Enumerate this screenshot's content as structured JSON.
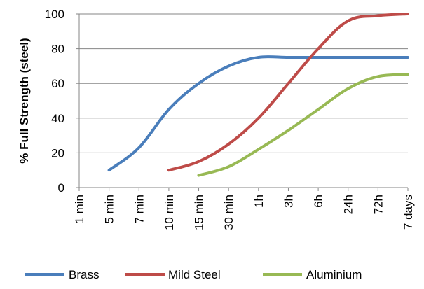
{
  "chart_data": {
    "type": "line",
    "title": "",
    "xlabel": "",
    "ylabel": "% Full Strength (steel)",
    "ylim": [
      0,
      100
    ],
    "yticks": [
      0,
      20,
      40,
      60,
      80,
      100
    ],
    "categories": [
      "1 min",
      "5 min",
      "7 min",
      "10 min",
      "15 min",
      "30 min",
      "1h",
      "3h",
      "6h",
      "24h",
      "72h",
      "7 days"
    ],
    "grid": "horizontal",
    "legend": "bottom",
    "series": [
      {
        "name": "Brass",
        "color": "#4a7ebb",
        "points": [
          [
            1,
            10
          ],
          [
            2,
            23
          ],
          [
            3,
            45
          ],
          [
            4,
            60
          ],
          [
            5,
            70
          ],
          [
            6,
            75
          ],
          [
            7,
            75
          ],
          [
            8,
            75
          ],
          [
            9,
            75
          ],
          [
            10,
            75
          ],
          [
            11,
            75
          ]
        ]
      },
      {
        "name": "Mild Steel",
        "color": "#be4b48",
        "points": [
          [
            3,
            10
          ],
          [
            4,
            15
          ],
          [
            5,
            25
          ],
          [
            6,
            40
          ],
          [
            7,
            60
          ],
          [
            8,
            80
          ],
          [
            9,
            96
          ],
          [
            10,
            99
          ],
          [
            11,
            100
          ]
        ]
      },
      {
        "name": "Aluminium",
        "color": "#98b954",
        "points": [
          [
            4,
            7
          ],
          [
            5,
            12
          ],
          [
            6,
            22
          ],
          [
            7,
            33
          ],
          [
            8,
            45
          ],
          [
            9,
            57
          ],
          [
            10,
            64
          ],
          [
            11,
            65
          ]
        ]
      }
    ]
  }
}
